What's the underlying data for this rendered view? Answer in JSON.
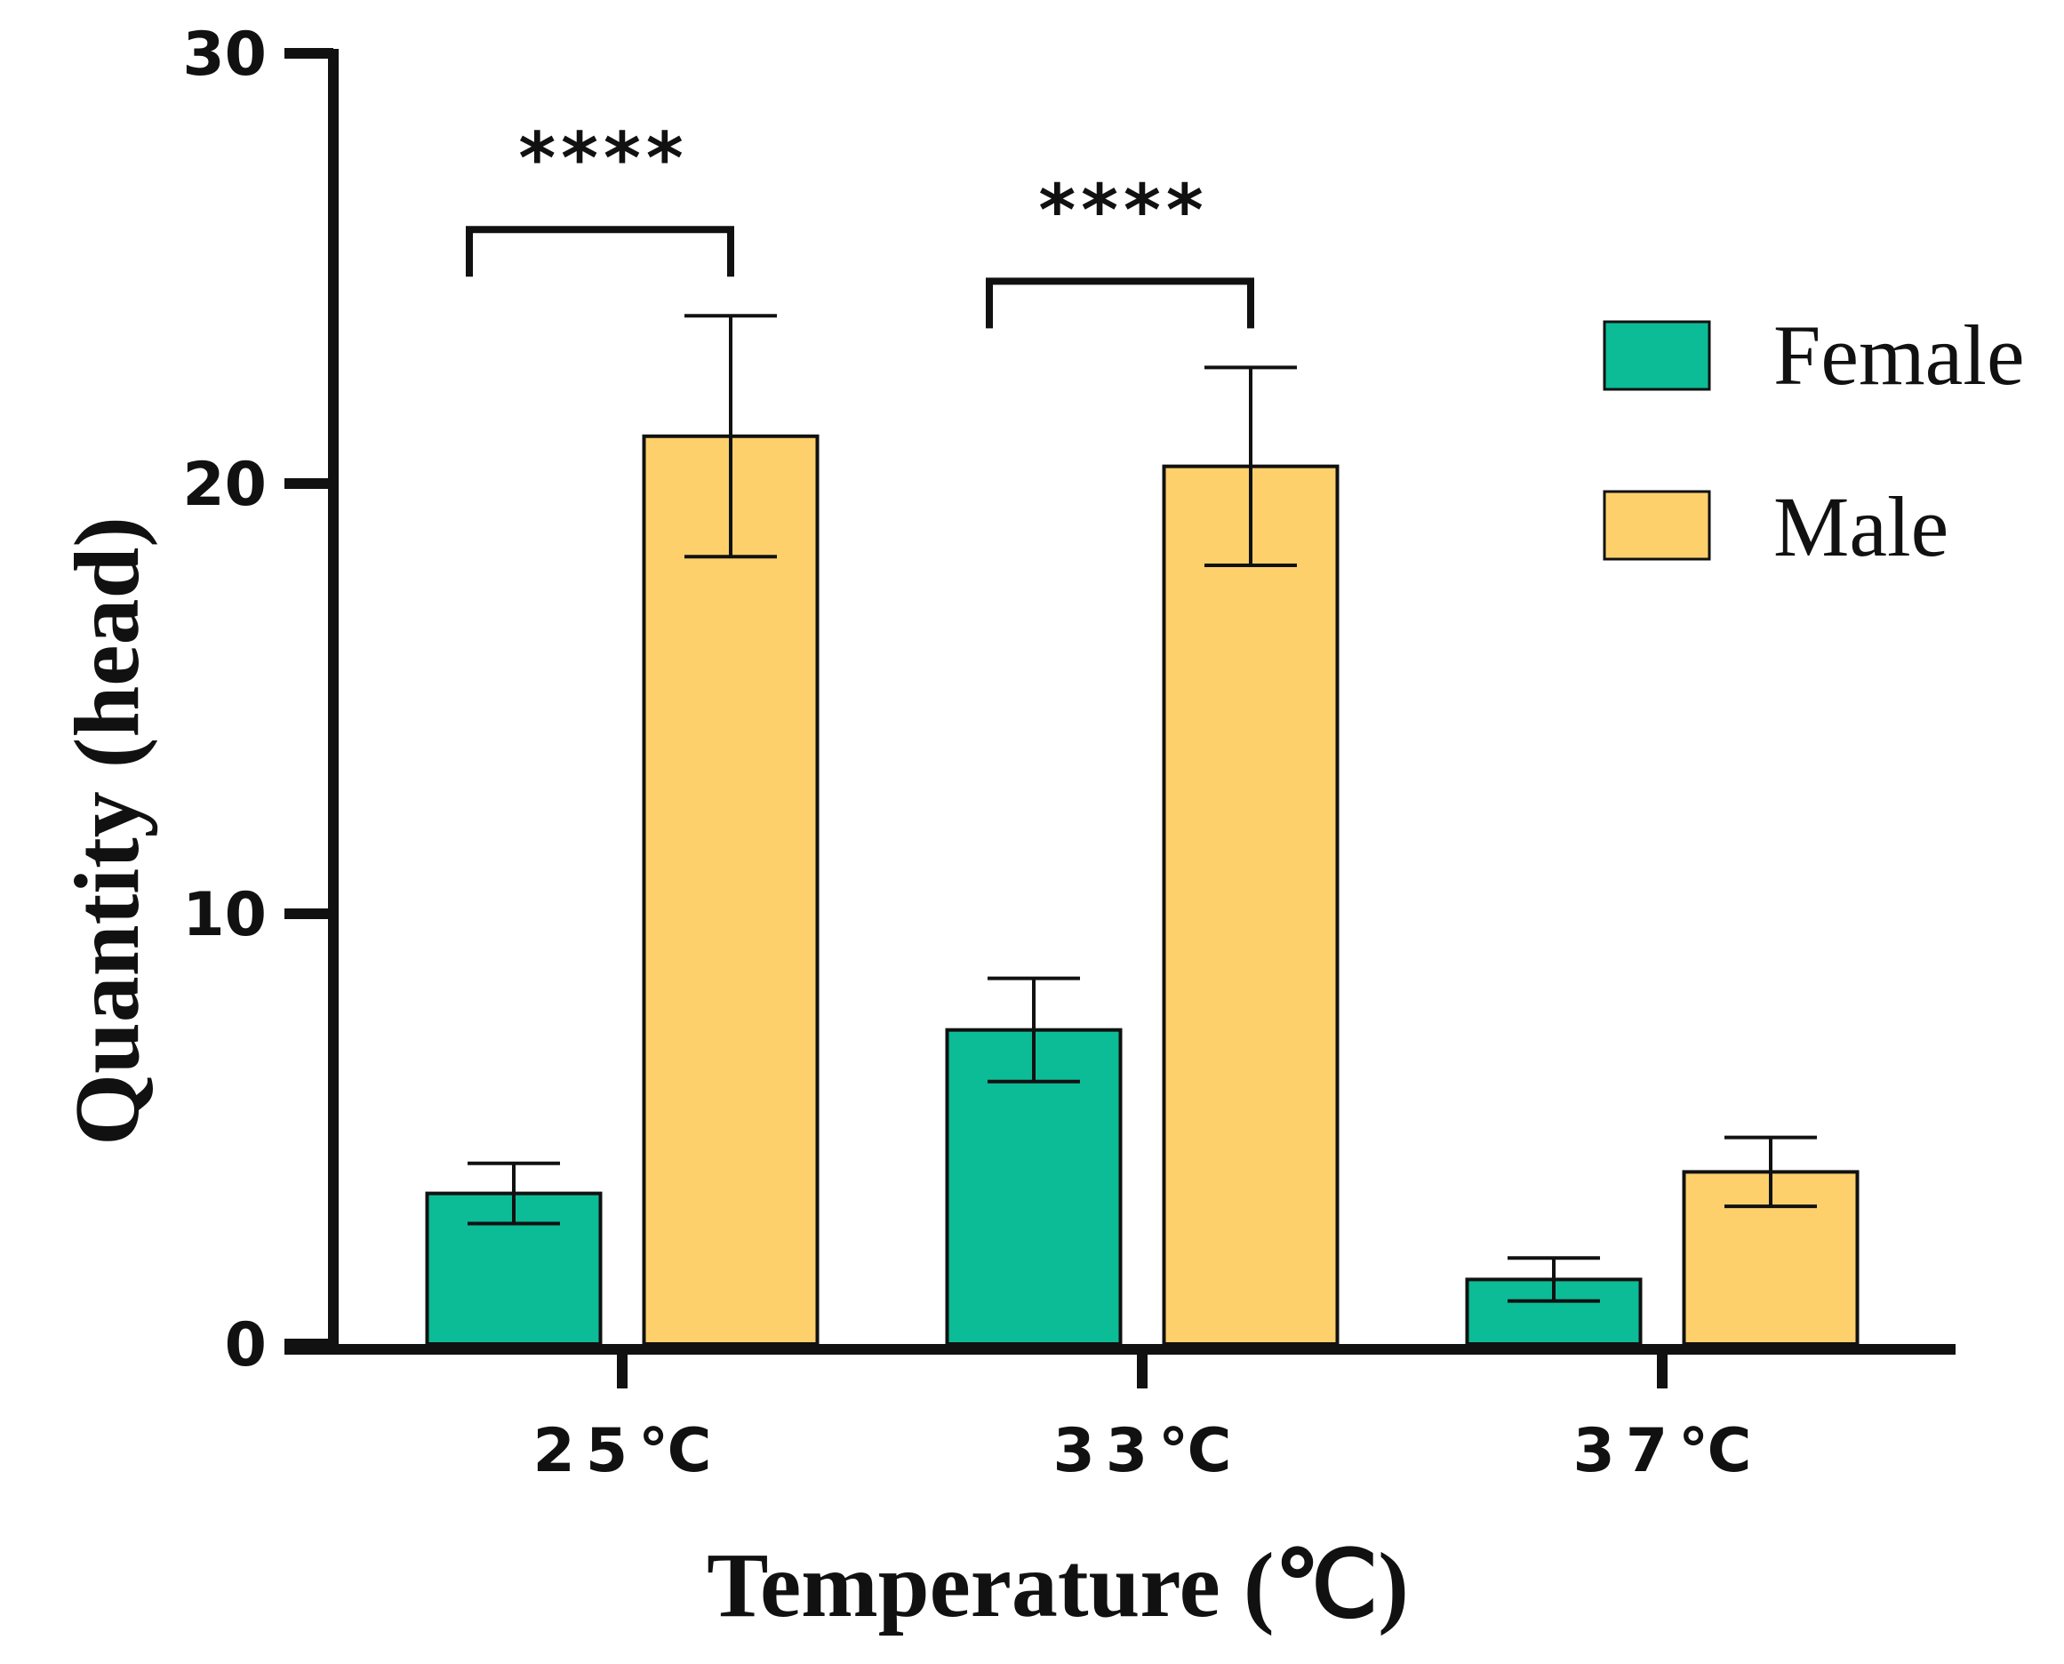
{
  "chart_data": {
    "type": "bar",
    "title": "",
    "xlabel": "Temperature (℃)",
    "ylabel": "Quantity (head)",
    "ylim": [
      0,
      30
    ],
    "yticks": [
      0,
      10,
      20,
      30
    ],
    "ytick_labels": [
      "0",
      "10",
      "20",
      "30"
    ],
    "grid": false,
    "legend_position": "top-right",
    "categories": [
      "25℃",
      "33℃",
      "37℃"
    ],
    "series": [
      {
        "name": "Female",
        "color": "#0cbc96",
        "values": [
          3.5,
          7.3,
          1.5
        ],
        "error": [
          0.7,
          1.2,
          0.5
        ]
      },
      {
        "name": "Male",
        "color": "#fdd06c",
        "values": [
          21.1,
          20.4,
          4.0
        ],
        "error": [
          2.8,
          2.3,
          0.8
        ]
      }
    ],
    "annotations": [
      {
        "text": "****",
        "category": "25℃"
      },
      {
        "text": "****",
        "category": "33℃"
      }
    ]
  }
}
